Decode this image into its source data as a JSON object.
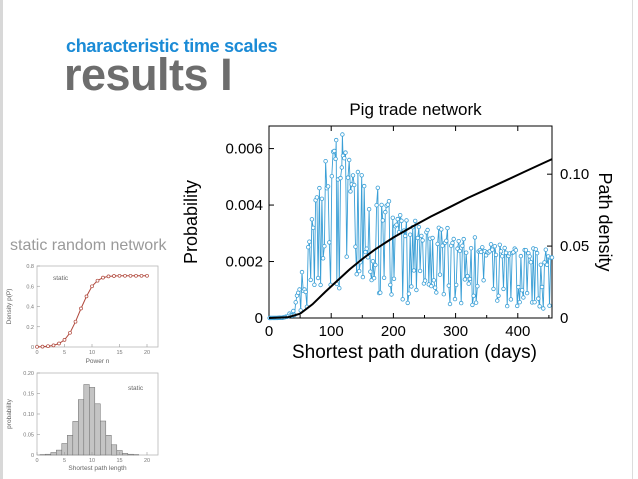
{
  "slide": {
    "subtitle": "characteristic time scales",
    "title": "results I",
    "side_label": "static random network"
  },
  "chart_data": [
    {
      "type": "line",
      "title": "Pig trade network",
      "xlabel": "Shortest path duration (days)",
      "ylabel": "Probability",
      "ylabel_right": "Path density",
      "xlim": [
        0,
        455
      ],
      "ylim": [
        0,
        0.0068
      ],
      "ylim_right": [
        0,
        0.1335
      ],
      "xticks": [
        0,
        100,
        200,
        300,
        400
      ],
      "yticks": [
        0,
        0.002,
        0.004,
        0.006
      ],
      "ytick_labels": [
        "0",
        "0.002",
        "0.004",
        "0.006"
      ],
      "yticks_right": [
        0,
        0.05,
        0.1
      ],
      "ytick_right_labels": [
        "0",
        "0.05",
        "0.10"
      ],
      "series": [
        {
          "color": "#3a9fd6",
          "axis": "left",
          "marker": "circle",
          "envelope": [
            [
              0,
              0
            ],
            [
              20,
              1e-05
            ],
            [
              30,
              0.0001
            ],
            [
              40,
              0.0003
            ],
            [
              50,
              0.0012
            ],
            [
              60,
              0.0024
            ],
            [
              70,
              0.0033
            ],
            [
              80,
              0.0043
            ],
            [
              90,
              0.0052
            ],
            [
              100,
              0.0057
            ],
            [
              105,
              0.0063
            ],
            [
              110,
              0.0058
            ],
            [
              120,
              0.0055
            ],
            [
              130,
              0.0052
            ],
            [
              150,
              0.0046
            ],
            [
              170,
              0.0043
            ],
            [
              200,
              0.0037
            ],
            [
              230,
              0.0032
            ],
            [
              260,
              0.003
            ],
            [
              290,
              0.0029
            ],
            [
              320,
              0.0027
            ],
            [
              350,
              0.0025
            ],
            [
              380,
              0.0024
            ],
            [
              410,
              0.0023
            ],
            [
              440,
              0.0022
            ],
            [
              455,
              0.0022
            ]
          ],
          "peaks": [
            [
              108,
              0.0063
            ],
            [
              118,
              0.0065
            ]
          ],
          "seed": 7
        },
        {
          "color": "#000000",
          "axis": "right",
          "marker": "none",
          "points": [
            [
              0,
              0
            ],
            [
              30,
              0.0005
            ],
            [
              50,
              0.003
            ],
            [
              70,
              0.0095
            ],
            [
              90,
              0.018
            ],
            [
              110,
              0.026
            ],
            [
              130,
              0.034
            ],
            [
              150,
              0.041
            ],
            [
              170,
              0.0475
            ],
            [
              200,
              0.056
            ],
            [
              230,
              0.0635
            ],
            [
              260,
              0.0705
            ],
            [
              290,
              0.077
            ],
            [
              320,
              0.0835
            ],
            [
              350,
              0.0895
            ],
            [
              380,
              0.0955
            ],
            [
              410,
              0.1015
            ],
            [
              440,
              0.1075
            ],
            [
              455,
              0.1105
            ]
          ]
        }
      ]
    },
    {
      "type": "line",
      "xlabel": "Power n",
      "ylabel": "Density p(P)",
      "annotation": "static",
      "xlim": [
        0,
        22
      ],
      "ylim": [
        0,
        0.8
      ],
      "xticks": [
        0,
        5,
        10,
        15,
        20
      ],
      "yticks": [
        0,
        0.2,
        0.4,
        0.6,
        0.8
      ],
      "ytick_labels": [
        "0",
        "0.2",
        "0.4",
        "0.6",
        "0.8"
      ],
      "series": [
        {
          "color": "#b0483c",
          "marker": "circle",
          "x": [
            0,
            1,
            2,
            3,
            4,
            5,
            6,
            7,
            8,
            9,
            10,
            11,
            12,
            13,
            14,
            15,
            16,
            17,
            18,
            19,
            20
          ],
          "y": [
            0.002,
            0.004,
            0.008,
            0.016,
            0.035,
            0.07,
            0.14,
            0.25,
            0.38,
            0.5,
            0.6,
            0.655,
            0.685,
            0.697,
            0.701,
            0.703,
            0.703,
            0.703,
            0.703,
            0.703,
            0.703
          ]
        }
      ]
    },
    {
      "type": "bar",
      "xlabel": "Shortest path length",
      "ylabel": "probability",
      "annotation": "static",
      "xlim": [
        0,
        22
      ],
      "ylim": [
        0,
        0.2
      ],
      "xticks": [
        0,
        5,
        10,
        15,
        20
      ],
      "yticks": [
        0,
        0.05,
        0.1,
        0.15,
        0.2
      ],
      "ytick_labels": [
        "0",
        "0.05",
        "0.10",
        "0.15",
        "0.20"
      ],
      "categories": [
        1,
        2,
        3,
        4,
        5,
        6,
        7,
        8,
        9,
        10,
        11,
        12,
        13,
        14,
        15,
        16,
        17,
        18
      ],
      "values": [
        0.001,
        0.002,
        0.006,
        0.012,
        0.028,
        0.048,
        0.082,
        0.135,
        0.172,
        0.165,
        0.125,
        0.083,
        0.048,
        0.025,
        0.011,
        0.004,
        0.002,
        0.001
      ]
    }
  ]
}
